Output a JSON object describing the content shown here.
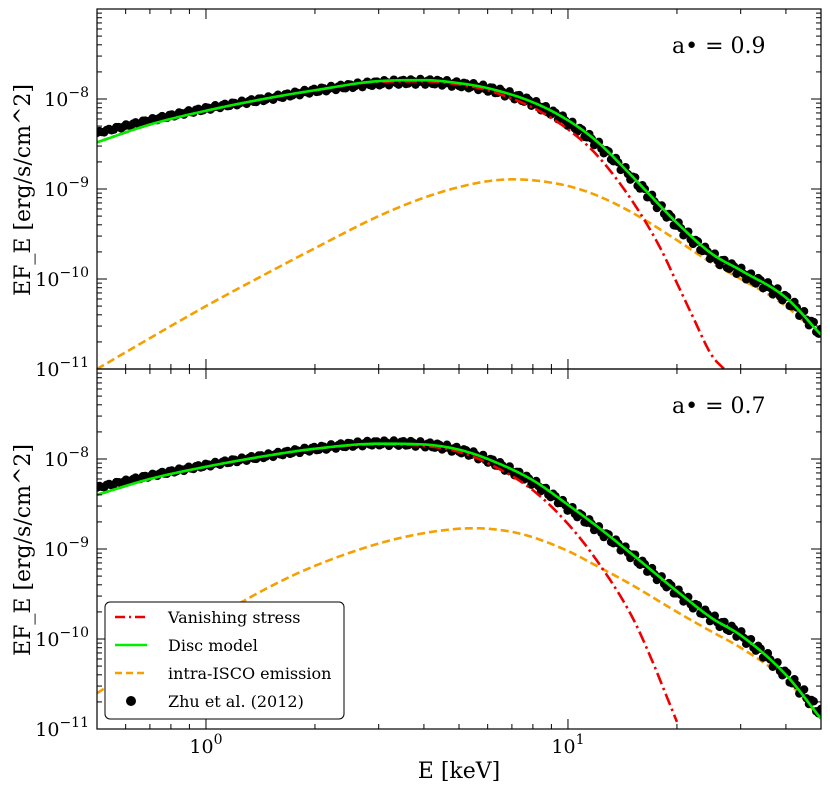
{
  "chart_data": {
    "type": "line",
    "title": "",
    "xlabel": "E [keV]",
    "ylabel": "EF_E [erg/s/cm^2]",
    "x_scale": "log",
    "y_scale": "log",
    "xlim": [
      0.5,
      50
    ],
    "ylim": [
      1e-11,
      1e-07
    ],
    "x_tick_labels": [
      "10^0",
      "10^1"
    ],
    "y_tick_labels": [
      "10^-11",
      "10^-10",
      "10^-9",
      "10^-8"
    ],
    "legend": {
      "location": "lower-left",
      "entries": [
        {
          "label": "Vanishing stress",
          "color": "#ee0000",
          "style": "dashdot"
        },
        {
          "label": "Disc model",
          "color": "#00ee00",
          "style": "solid"
        },
        {
          "label": "intra-ISCO emission",
          "color": "#f5a000",
          "style": "dashed"
        },
        {
          "label": "Zhu et al. (2012)",
          "color": "#000000",
          "style": "points"
        }
      ]
    },
    "panels": [
      {
        "annotation": "a• = 0.9",
        "series": [
          {
            "name": "Zhu et al. (2012)",
            "x": [
              0.5,
              0.7,
              1,
              1.5,
              2,
              3,
              4,
              5,
              6,
              8,
              10,
              12,
              15,
              20,
              25,
              30,
              40,
              50
            ],
            "y": [
              4.2e-09,
              5.8e-09,
              7.8e-09,
              1.02e-08,
              1.24e-08,
              1.5e-08,
              1.55e-08,
              1.45e-08,
              1.3e-08,
              9e-09,
              5.5e-09,
              3.2e-09,
              1.35e-09,
              4e-10,
              1.8e-10,
              1.2e-10,
              6e-11,
              2.5e-11
            ]
          },
          {
            "name": "Disc model",
            "x": [
              0.5,
              0.7,
              1,
              1.5,
              2,
              3,
              4,
              5,
              6,
              8,
              10,
              12,
              15,
              20,
              25,
              30,
              40,
              50
            ],
            "y": [
              3.3e-09,
              5.2e-09,
              7.4e-09,
              1.03e-08,
              1.25e-08,
              1.58e-08,
              1.62e-08,
              1.5e-08,
              1.32e-08,
              9.2e-09,
              5.8e-09,
              3.4e-09,
              1.4e-09,
              4.2e-10,
              1.9e-10,
              1.25e-10,
              6.2e-11,
              2.4e-11
            ]
          },
          {
            "name": "Vanishing stress",
            "x": [
              0.5,
              0.7,
              1,
              1.5,
              2,
              3,
              4,
              5,
              6,
              8,
              10,
              12,
              15,
              18,
              20,
              22,
              25,
              27
            ],
            "y": [
              3.3e-09,
              5.2e-09,
              7.4e-09,
              1.03e-08,
              1.25e-08,
              1.55e-08,
              1.57e-08,
              1.45e-08,
              1.25e-08,
              8e-09,
              4.6e-09,
              2.4e-09,
              7.5e-10,
              2.2e-10,
              9e-11,
              4e-11,
              1.4e-11,
              1e-11
            ]
          },
          {
            "name": "intra-ISCO emission",
            "x": [
              0.5,
              0.7,
              1,
              1.5,
              2,
              3,
              4,
              5,
              6,
              7,
              8,
              10,
              12,
              15,
              20,
              25,
              30,
              40,
              50
            ],
            "y": [
              1e-11,
              2.2e-11,
              5e-11,
              1.2e-10,
              2.2e-10,
              5e-10,
              8e-10,
              1.05e-09,
              1.22e-09,
              1.28e-09,
              1.25e-09,
              1.08e-09,
              8.5e-10,
              5.5e-10,
              2.7e-10,
              1.5e-10,
              1e-10,
              5e-11,
              2.2e-11
            ]
          }
        ]
      },
      {
        "annotation": "a• = 0.7",
        "series": [
          {
            "name": "Zhu et al. (2012)",
            "x": [
              0.5,
              0.7,
              1,
              1.5,
              2,
              3,
              4,
              5,
              6,
              8,
              10,
              12,
              15,
              20,
              25,
              30,
              40,
              50
            ],
            "y": [
              4.8e-09,
              6.5e-09,
              8.5e-09,
              1.1e-08,
              1.3e-08,
              1.5e-08,
              1.45e-08,
              1.25e-08,
              9.8e-09,
              5.5e-09,
              2.9e-09,
              1.7e-09,
              8.5e-10,
              3.3e-10,
              1.7e-10,
              1.1e-10,
              4e-11,
              1.5e-11
            ]
          },
          {
            "name": "Disc model",
            "x": [
              0.5,
              0.7,
              1,
              1.5,
              2,
              3,
              4,
              5,
              6,
              8,
              10,
              12,
              15,
              20,
              25,
              30,
              40,
              50
            ],
            "y": [
              4e-09,
              6e-09,
              8.2e-09,
              1.1e-08,
              1.3e-08,
              1.48e-08,
              1.45e-08,
              1.27e-08,
              1e-08,
              5.8e-09,
              3.1e-09,
              1.8e-09,
              8.8e-10,
              3.4e-10,
              1.7e-10,
              1.1e-10,
              4e-11,
              1.3e-11
            ]
          },
          {
            "name": "Vanishing stress",
            "x": [
              0.5,
              0.7,
              1,
              1.5,
              2,
              3,
              4,
              5,
              6,
              8,
              10,
              12,
              15,
              17,
              19,
              20
            ],
            "y": [
              4e-09,
              6e-09,
              8.2e-09,
              1.1e-08,
              1.3e-08,
              1.45e-08,
              1.4e-08,
              1.2e-08,
              9e-09,
              4.5e-09,
              1.9e-09,
              7.5e-10,
              1.8e-10,
              6e-11,
              2e-11,
              1.2e-11
            ]
          },
          {
            "name": "intra-ISCO emission",
            "x": [
              0.5,
              0.7,
              1,
              1.5,
              2,
              3,
              4,
              5,
              5.5,
              6,
              7,
              8,
              10,
              12,
              15,
              20,
              25,
              30,
              40,
              50
            ],
            "y": [
              2.5e-11,
              6e-11,
              1.5e-10,
              3.8e-10,
              6.5e-10,
              1.15e-09,
              1.5e-09,
              1.68e-09,
              1.7e-09,
              1.68e-09,
              1.55e-09,
              1.35e-09,
              9.5e-10,
              6.5e-10,
              4e-10,
              2e-10,
              1.2e-10,
              8e-11,
              3.5e-11,
              1.3e-11
            ]
          }
        ]
      }
    ]
  }
}
